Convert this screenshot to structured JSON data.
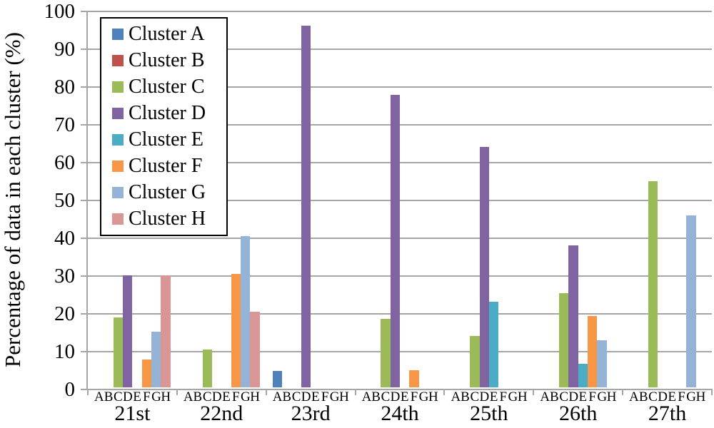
{
  "chart_data": {
    "type": "bar",
    "title": "",
    "xlabel": "",
    "ylabel": "Percentage of data in each cluster (%)",
    "ylim": [
      0,
      100
    ],
    "ytick_step": 10,
    "ytick_labels": [
      "0",
      "10",
      "20",
      "30",
      "40",
      "50",
      "60",
      "70",
      "80",
      "90",
      "100"
    ],
    "grid": true,
    "legend_position": "top-left-inside",
    "categories": [
      "21st",
      "22nd",
      "23rd",
      "24th",
      "25th",
      "26th",
      "27th"
    ],
    "sub_categories": [
      "A",
      "B",
      "C",
      "D",
      "E",
      "F",
      "G",
      "H"
    ],
    "series": [
      {
        "name": "Cluster A",
        "color": "#4F81BD",
        "values": [
          0,
          0,
          4.3,
          0,
          0,
          0,
          0
        ]
      },
      {
        "name": "Cluster B",
        "color": "#C0504D",
        "values": [
          0,
          0,
          0,
          0,
          0,
          0,
          0
        ]
      },
      {
        "name": "Cluster C",
        "color": "#9BBB59",
        "values": [
          18.5,
          10,
          0,
          18.2,
          13.6,
          25,
          54.5
        ]
      },
      {
        "name": "Cluster D",
        "color": "#8064A2",
        "values": [
          29.6,
          0,
          95.7,
          77.3,
          63.6,
          37.5,
          0
        ]
      },
      {
        "name": "Cluster E",
        "color": "#4BACC6",
        "values": [
          0,
          0,
          0,
          0,
          22.7,
          6.3,
          0
        ]
      },
      {
        "name": "Cluster F",
        "color": "#F79646",
        "values": [
          7.4,
          30,
          0,
          4.5,
          0,
          18.8,
          0
        ]
      },
      {
        "name": "Cluster G",
        "color": "#95B3D7",
        "values": [
          14.8,
          40,
          0,
          0,
          0,
          12.5,
          45.5
        ]
      },
      {
        "name": "Cluster H",
        "color": "#D99694",
        "values": [
          29.6,
          20,
          0,
          0,
          0,
          0,
          0
        ]
      }
    ],
    "colors": {
      "gridline": "#A6A6A6",
      "axis": "#A6A6A6",
      "text": "#000000",
      "legend_border": "#000000",
      "background": "#FFFFFF"
    }
  }
}
